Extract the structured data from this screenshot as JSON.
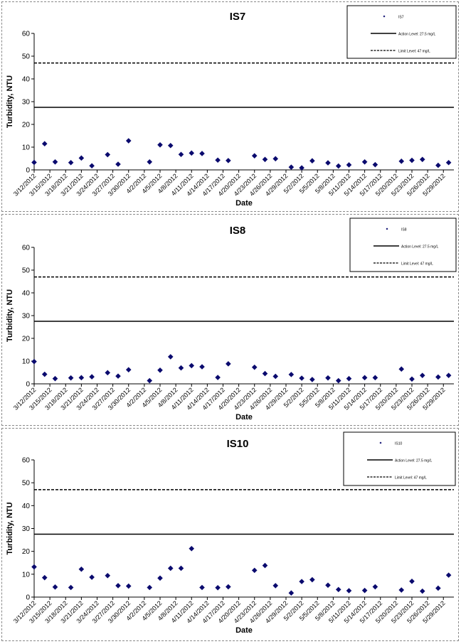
{
  "dates": [
    "3/12/2012",
    "3/15/2012",
    "3/18/2012",
    "3/21/2012",
    "3/24/2012",
    "3/27/2012",
    "3/30/2012",
    "4/2/2012",
    "4/5/2012",
    "4/8/2012",
    "4/11/2012",
    "4/14/2012",
    "4/17/2012",
    "4/20/2012",
    "4/23/2012",
    "4/26/2012",
    "4/29/2012",
    "5/2/2012",
    "5/5/2012",
    "5/8/2012",
    "5/11/2012",
    "5/14/2012",
    "5/17/2012",
    "5/20/2012",
    "5/23/2012",
    "5/26/2012",
    "5/29/2012"
  ],
  "colors": {
    "marker": "#0a0a6e",
    "line": "#000000"
  },
  "chart_data": [
    {
      "type": "scatter",
      "title": "IS7",
      "xlabel": "Date",
      "ylabel": "Turbidity, NTU",
      "ylim": [
        0,
        60
      ],
      "yticks": [
        0,
        10,
        20,
        30,
        40,
        50,
        60
      ],
      "xlim": [
        "3/12/2012",
        "5/31/2012"
      ],
      "grid": false,
      "legend_position": "top-right",
      "legend": {
        "series": "IS7",
        "action": "Action Level: 27.5 mg/L",
        "limit": "Limit Level: 47 mg/L"
      },
      "action_level": 27.5,
      "limit_level": 47,
      "series": [
        {
          "name": "IS7",
          "points": [
            [
              "3/12/2012",
              3.3
            ],
            [
              "3/14/2012",
              11.5
            ],
            [
              "3/16/2012",
              3.5
            ],
            [
              "3/19/2012",
              3.2
            ],
            [
              "3/21/2012",
              5.2
            ],
            [
              "3/23/2012",
              1.8
            ],
            [
              "3/26/2012",
              6.7
            ],
            [
              "3/28/2012",
              2.5
            ],
            [
              "3/30/2012",
              12.8
            ],
            [
              "4/3/2012",
              3.5
            ],
            [
              "4/5/2012",
              11.0
            ],
            [
              "4/7/2012",
              10.7
            ],
            [
              "4/9/2012",
              6.8
            ],
            [
              "4/11/2012",
              7.4
            ],
            [
              "4/13/2012",
              7.2
            ],
            [
              "4/16/2012",
              4.3
            ],
            [
              "4/18/2012",
              4.1
            ],
            [
              "4/23/2012",
              6.2
            ],
            [
              "4/25/2012",
              4.6
            ],
            [
              "4/27/2012",
              4.9
            ],
            [
              "4/30/2012",
              1.2
            ],
            [
              "5/2/2012",
              0.9
            ],
            [
              "5/4/2012",
              4.0
            ],
            [
              "5/7/2012",
              3.1
            ],
            [
              "5/9/2012",
              1.7
            ],
            [
              "5/11/2012",
              2.2
            ],
            [
              "5/14/2012",
              3.5
            ],
            [
              "5/16/2012",
              2.3
            ],
            [
              "5/21/2012",
              3.8
            ],
            [
              "5/23/2012",
              4.2
            ],
            [
              "5/25/2012",
              4.6
            ],
            [
              "5/28/2012",
              2.0
            ],
            [
              "5/30/2012",
              3.2
            ]
          ]
        }
      ]
    },
    {
      "type": "scatter",
      "title": "IS8",
      "xlabel": "Date",
      "ylabel": "Turbidity, NTU",
      "ylim": [
        0,
        60
      ],
      "yticks": [
        0,
        10,
        20,
        30,
        40,
        50,
        60
      ],
      "xlim": [
        "3/12/2012",
        "5/31/2012"
      ],
      "grid": false,
      "legend_position": "top-right",
      "legend": {
        "series": "IS8",
        "action": "Action Level: 27.5 mg/L",
        "limit": "Limit Level: 47 mg/L"
      },
      "action_level": 27.5,
      "limit_level": 47,
      "series": [
        {
          "name": "IS8",
          "points": [
            [
              "3/12/2012",
              9.8
            ],
            [
              "3/14/2012",
              4.2
            ],
            [
              "3/16/2012",
              2.3
            ],
            [
              "3/19/2012",
              2.6
            ],
            [
              "3/21/2012",
              2.7
            ],
            [
              "3/23/2012",
              3.1
            ],
            [
              "3/26/2012",
              4.9
            ],
            [
              "3/28/2012",
              3.4
            ],
            [
              "3/30/2012",
              6.2
            ],
            [
              "4/3/2012",
              1.4
            ],
            [
              "4/5/2012",
              6.0
            ],
            [
              "4/7/2012",
              11.9
            ],
            [
              "4/9/2012",
              7.0
            ],
            [
              "4/11/2012",
              8.0
            ],
            [
              "4/13/2012",
              7.5
            ],
            [
              "4/16/2012",
              2.8
            ],
            [
              "4/18/2012",
              8.8
            ],
            [
              "4/23/2012",
              7.3
            ],
            [
              "4/25/2012",
              4.5
            ],
            [
              "4/27/2012",
              3.3
            ],
            [
              "4/30/2012",
              4.1
            ],
            [
              "5/2/2012",
              2.5
            ],
            [
              "5/4/2012",
              1.9
            ],
            [
              "5/7/2012",
              2.6
            ],
            [
              "5/9/2012",
              1.4
            ],
            [
              "5/11/2012",
              2.3
            ],
            [
              "5/14/2012",
              2.7
            ],
            [
              "5/16/2012",
              2.7
            ],
            [
              "5/21/2012",
              6.5
            ],
            [
              "5/23/2012",
              2.1
            ],
            [
              "5/25/2012",
              3.7
            ],
            [
              "5/28/2012",
              3.0
            ],
            [
              "5/30/2012",
              3.7
            ]
          ]
        }
      ]
    },
    {
      "type": "scatter",
      "title": "IS10",
      "xlabel": "Date",
      "ylabel": "Turbidity, NTU",
      "ylim": [
        0,
        60
      ],
      "yticks": [
        0,
        10,
        20,
        30,
        40,
        50,
        60
      ],
      "xlim": [
        "3/12/2012",
        "5/31/2012"
      ],
      "grid": false,
      "legend_position": "top-right",
      "legend": {
        "series": "IS10",
        "action": "Action Level: 27.5 mg/L",
        "limit": "Limit Level: 47 mg/L"
      },
      "action_level": 27.5,
      "limit_level": 47,
      "series": [
        {
          "name": "IS10",
          "points": [
            [
              "3/12/2012",
              13.2
            ],
            [
              "3/14/2012",
              8.5
            ],
            [
              "3/16/2012",
              4.4
            ],
            [
              "3/19/2012",
              4.2
            ],
            [
              "3/21/2012",
              12.2
            ],
            [
              "3/23/2012",
              8.7
            ],
            [
              "3/26/2012",
              9.4
            ],
            [
              "3/28/2012",
              5.0
            ],
            [
              "3/30/2012",
              4.8
            ],
            [
              "4/3/2012",
              4.2
            ],
            [
              "4/5/2012",
              8.3
            ],
            [
              "4/7/2012",
              12.6
            ],
            [
              "4/9/2012",
              12.6
            ],
            [
              "4/11/2012",
              21.2
            ],
            [
              "4/13/2012",
              4.2
            ],
            [
              "4/16/2012",
              4.1
            ],
            [
              "4/18/2012",
              4.5
            ],
            [
              "4/23/2012",
              11.7
            ],
            [
              "4/25/2012",
              13.8
            ],
            [
              "4/27/2012",
              5.0
            ],
            [
              "4/30/2012",
              1.8
            ],
            [
              "5/2/2012",
              6.8
            ],
            [
              "5/4/2012",
              7.6
            ],
            [
              "5/7/2012",
              5.2
            ],
            [
              "5/9/2012",
              3.3
            ],
            [
              "5/11/2012",
              2.8
            ],
            [
              "5/14/2012",
              2.9
            ],
            [
              "5/16/2012",
              4.5
            ],
            [
              "5/21/2012",
              3.1
            ],
            [
              "5/23/2012",
              6.9
            ],
            [
              "5/25/2012",
              2.6
            ],
            [
              "5/28/2012",
              3.9
            ],
            [
              "5/30/2012",
              9.6
            ]
          ]
        }
      ]
    }
  ]
}
